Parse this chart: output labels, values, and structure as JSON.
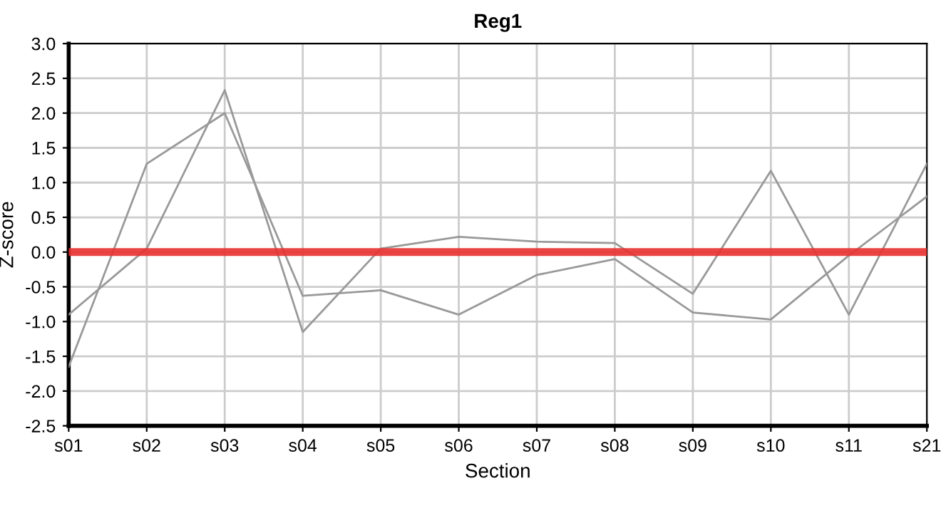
{
  "chart_data": {
    "type": "line",
    "title": "Reg1",
    "xlabel": "Section",
    "ylabel": "Z-score",
    "categories": [
      "s01",
      "s02",
      "s03",
      "s04",
      "s05",
      "s06",
      "s07",
      "s08",
      "s09",
      "s10",
      "s11",
      "s21"
    ],
    "series": [
      {
        "color": "#999999",
        "values": [
          -0.9,
          0.05,
          2.33,
          -1.15,
          0.05,
          0.22,
          0.15,
          0.13,
          -0.6,
          1.17,
          -0.9,
          1.27
        ]
      },
      {
        "color": "#999999",
        "values": [
          -1.65,
          1.27,
          2.0,
          -0.63,
          -0.55,
          -0.9,
          -0.33,
          -0.1,
          -0.87,
          -0.97,
          -0.05,
          0.8
        ]
      }
    ],
    "ylim": [
      -2.5,
      3.0
    ],
    "yticks": [
      {
        "value": -2.5,
        "label": "-2.5"
      },
      {
        "value": -2.0,
        "label": "-2.0"
      },
      {
        "value": -1.5,
        "label": "-1.5"
      },
      {
        "value": -1.0,
        "label": "-1.0"
      },
      {
        "value": -0.5,
        "label": "-0.5"
      },
      {
        "value": 0.0,
        "label": "0.0"
      },
      {
        "value": 0.5,
        "label": "0.5"
      },
      {
        "value": 1.0,
        "label": "1.0"
      },
      {
        "value": 1.5,
        "label": "1.5"
      },
      {
        "value": 2.0,
        "label": "2.0"
      },
      {
        "value": 2.5,
        "label": "2.5"
      },
      {
        "value": 3.0,
        "label": "3.0"
      }
    ],
    "ref_lines": [
      {
        "axis": "y",
        "value": 0,
        "color": "#e83030"
      }
    ],
    "grid": true
  }
}
